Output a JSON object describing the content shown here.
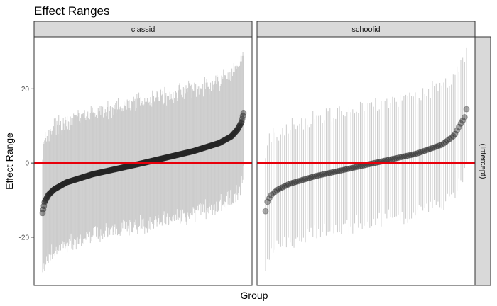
{
  "chart_data": {
    "type": "scatter",
    "title": "Effect Ranges",
    "xlabel": "Group",
    "ylabel": "Effect Range",
    "row_strip": "(Intercept)",
    "ylim": [
      -33,
      34
    ],
    "yticks": [
      -20,
      0,
      20
    ],
    "reference_line": {
      "y": 0,
      "color": "#e8000b"
    },
    "colors": {
      "interval": "#cccccc",
      "point": "#262626",
      "strip_fill": "#d9d9d9",
      "border": "#333333"
    },
    "grid": false,
    "panels": [
      {
        "name": "classid",
        "n": 312,
        "estimates": {
          "q": [
            0,
            0.01,
            0.03,
            0.06,
            0.12,
            0.25,
            0.5,
            0.75,
            0.88,
            0.94,
            0.97,
            0.99,
            1
          ],
          "v": [
            -13.5,
            -10.5,
            -8.5,
            -7,
            -5.2,
            -3,
            0,
            3.2,
            5.4,
            7.2,
            9,
            11,
            13.5
          ]
        },
        "interval_half_width": 16.5,
        "point_opacity": 0.45
      },
      {
        "name": "schoolid",
        "n": 107,
        "estimates": {
          "q": [
            0,
            0.01,
            0.03,
            0.06,
            0.12,
            0.25,
            0.5,
            0.75,
            0.88,
            0.94,
            0.97,
            0.99,
            1
          ],
          "v": [
            -13,
            -10.3,
            -8.5,
            -7.2,
            -5.6,
            -3.5,
            -0.5,
            2.5,
            5,
            7.5,
            10.5,
            12.2,
            14.5
          ]
        },
        "interval_half_width": 15.5,
        "point_opacity": 0.4
      }
    ]
  }
}
